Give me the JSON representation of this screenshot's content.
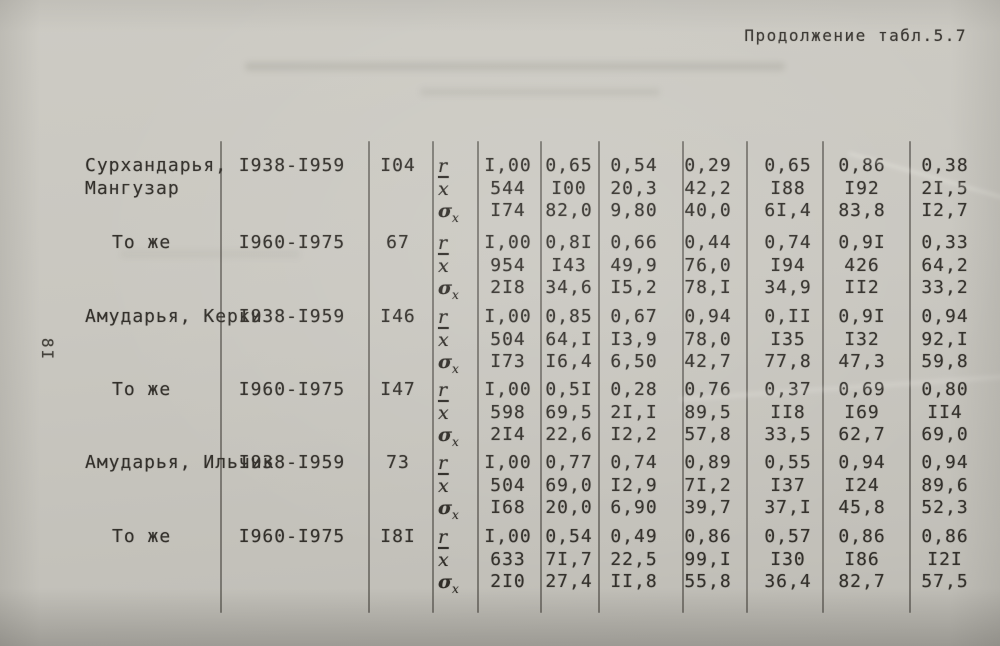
{
  "page": {
    "continuation_label": "Продолжение табл.5.7",
    "page_number": "8I"
  },
  "table": {
    "stat_labels": [
      {
        "id": "r",
        "base": "r",
        "sub": "",
        "overline": false,
        "bold": false
      },
      {
        "id": "x-mean",
        "base": "x",
        "sub": "",
        "overline": true,
        "bold": false
      },
      {
        "id": "sigma-x",
        "base": "σ",
        "sub": "x",
        "overline": false,
        "bold": true
      }
    ],
    "groups": [
      {
        "station": [
          "Сурхандарья,",
          "Мангузар"
        ],
        "indent": false,
        "period": "I938-I959",
        "n": "I04",
        "rows": [
          [
            "I,00",
            "0,65",
            "0,54",
            "0,29",
            "0,65",
            "0,86",
            "0,38"
          ],
          [
            "544",
            "I00",
            "20,3",
            "42,2",
            "I88",
            "I92",
            "2I,5"
          ],
          [
            "I74",
            "82,0",
            "9,80",
            "40,0",
            "6I,4",
            "83,8",
            "I2,7"
          ]
        ]
      },
      {
        "station": [
          "То же"
        ],
        "indent": true,
        "period": "I960-I975",
        "n": "67",
        "rows": [
          [
            "I,00",
            "0,8I",
            "0,66",
            "0,44",
            "0,74",
            "0,9I",
            "0,33"
          ],
          [
            "954",
            "I43",
            "49,9",
            "76,0",
            "I94",
            "426",
            "64,2"
          ],
          [
            "2I8",
            "34,6",
            "I5,2",
            "78,I",
            "34,9",
            "II2",
            "33,2"
          ]
        ]
      },
      {
        "station": [
          "Амударья, Керки"
        ],
        "indent": false,
        "period": "I938-I959",
        "n": "I46",
        "rows": [
          [
            "I,00",
            "0,85",
            "0,67",
            "0,94",
            "0,II",
            "0,9I",
            "0,94"
          ],
          [
            "504",
            "64,I",
            "I3,9",
            "78,0",
            "I35",
            "I32",
            "92,I"
          ],
          [
            "I73",
            "I6,4",
            "6,50",
            "42,7",
            "77,8",
            "47,3",
            "59,8"
          ]
        ]
      },
      {
        "station": [
          "То же"
        ],
        "indent": true,
        "period": "I960-I975",
        "n": "I47",
        "rows": [
          [
            "I,00",
            "0,5I",
            "0,28",
            "0,76",
            "0,37",
            "0,69",
            "0,80"
          ],
          [
            "598",
            "69,5",
            "2I,I",
            "89,5",
            "II8",
            "I69",
            "II4"
          ],
          [
            "2I4",
            "22,6",
            "I2,2",
            "57,8",
            "33,5",
            "62,7",
            "69,0"
          ]
        ]
      },
      {
        "station": [
          "Амударья, Ильчик"
        ],
        "indent": false,
        "period": "I938-I959",
        "n": "73",
        "rows": [
          [
            "I,00",
            "0,77",
            "0,74",
            "0,89",
            "0,55",
            "0,94",
            "0,94"
          ],
          [
            "504",
            "69,0",
            "I2,9",
            "7I,2",
            "I37",
            "I24",
            "89,6"
          ],
          [
            "I68",
            "20,0",
            "6,90",
            "39,7",
            "37,I",
            "45,8",
            "52,3"
          ]
        ]
      },
      {
        "station": [
          "То же"
        ],
        "indent": true,
        "period": "I960-I975",
        "n": "I8I",
        "rows": [
          [
            "I,00",
            "0,54",
            "0,49",
            "0,86",
            "0,57",
            "0,86",
            "0,86"
          ],
          [
            "633",
            "7I,7",
            "22,5",
            "99,I",
            "I30",
            "I86",
            "I2I"
          ],
          [
            "2I0",
            "27,4",
            "II,8",
            "55,8",
            "36,4",
            "82,7",
            "57,5"
          ]
        ]
      }
    ]
  }
}
